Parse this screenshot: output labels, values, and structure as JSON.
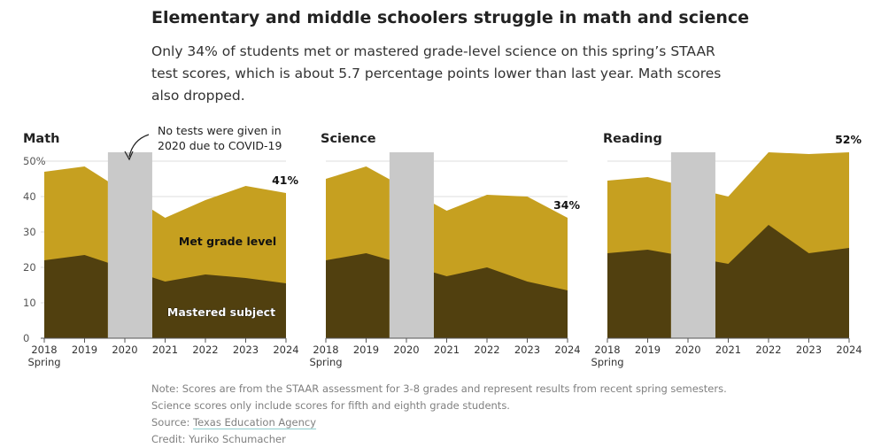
{
  "header": {
    "title": "Elementary and middle schoolers struggle in math and science",
    "subtitle": "Only 34% of students met or mastered grade-level science on this spring’s STAAR test scores, which is about 5.7 percentage points lower than last year. Math scores also dropped."
  },
  "colors": {
    "met": "#c6a020",
    "mastered": "#51400f",
    "gap": "#c9c9c9",
    "grid": "#dddddd",
    "axis": "#555555"
  },
  "annotation": {
    "line1": "No tests were given in",
    "line2": "2020 due to COVID-19"
  },
  "chart_data": [
    {
      "type": "area",
      "title": "Math",
      "x": [
        "2018",
        "2019",
        "2020",
        "2021",
        "2022",
        "2023",
        "2024"
      ],
      "x_sublabel": "Spring",
      "y_ticks": [
        "50%",
        "40",
        "30",
        "20",
        "10",
        "0"
      ],
      "ylim": [
        0,
        52
      ],
      "series": [
        {
          "name": "Met grade level",
          "values": [
            47,
            48.5,
            null,
            34,
            39,
            43,
            41
          ]
        },
        {
          "name": "Mastered subject",
          "values": [
            22,
            23.5,
            null,
            16,
            18,
            17,
            15.5
          ]
        }
      ],
      "end_label": "41%",
      "series_labels": {
        "met": "Met grade level",
        "mastered": "Mastered subject"
      }
    },
    {
      "type": "area",
      "title": "Science",
      "x": [
        "2018",
        "2019",
        "2020",
        "2021",
        "2022",
        "2023",
        "2024"
      ],
      "x_sublabel": "Spring",
      "ylim": [
        0,
        52
      ],
      "series": [
        {
          "name": "Met grade level",
          "values": [
            45,
            48.5,
            null,
            36,
            40.5,
            40,
            34
          ]
        },
        {
          "name": "Mastered subject",
          "values": [
            22,
            24,
            null,
            17.5,
            20,
            16,
            13.5
          ]
        }
      ],
      "end_label": "34%"
    },
    {
      "type": "area",
      "title": "Reading",
      "x": [
        "2018",
        "2019",
        "2020",
        "2021",
        "2022",
        "2023",
        "2024"
      ],
      "x_sublabel": "Spring",
      "ylim": [
        0,
        52
      ],
      "series": [
        {
          "name": "Met grade level",
          "values": [
            44.5,
            45.5,
            null,
            40,
            52.5,
            52,
            52.5
          ]
        },
        {
          "name": "Mastered subject",
          "values": [
            24,
            25,
            null,
            21,
            32,
            24,
            25.5
          ]
        }
      ],
      "end_label": "52%"
    }
  ],
  "footer": {
    "note1": "Note: Scores are from the STAAR assessment for 3-8 grades and represent results from recent spring semesters.",
    "note2": "Science scores only include scores for fifth and eighth grade students.",
    "source_prefix": "Source: ",
    "source_link": "Texas Education Agency",
    "credit": "Credit: Yuriko Schumacher"
  }
}
